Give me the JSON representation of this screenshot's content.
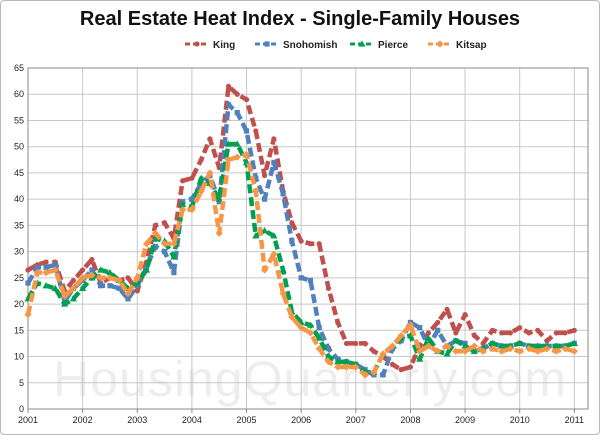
{
  "chart_data": {
    "type": "line",
    "title": "Real Estate Heat Index - Single-Family Houses",
    "xlabel": "",
    "ylabel": "",
    "ylim": [
      0,
      65
    ],
    "xlim": [
      2001,
      2011.25
    ],
    "yticks": [
      0,
      5,
      10,
      15,
      20,
      25,
      30,
      35,
      40,
      45,
      50,
      55,
      60,
      65
    ],
    "xticks": [
      2001,
      2002,
      2003,
      2004,
      2005,
      2006,
      2007,
      2008,
      2009,
      2010,
      2011
    ],
    "grid": true,
    "legend_position": "top",
    "x": [
      2001.0,
      2001.17,
      2001.33,
      2001.5,
      2001.67,
      2001.83,
      2002.0,
      2002.17,
      2002.33,
      2002.5,
      2002.67,
      2002.83,
      2003.0,
      2003.17,
      2003.33,
      2003.5,
      2003.67,
      2003.83,
      2004.0,
      2004.17,
      2004.33,
      2004.5,
      2004.67,
      2004.83,
      2005.0,
      2005.17,
      2005.33,
      2005.5,
      2005.67,
      2005.83,
      2006.0,
      2006.17,
      2006.33,
      2006.5,
      2006.67,
      2006.83,
      2007.0,
      2007.17,
      2007.33,
      2007.5,
      2007.67,
      2007.83,
      2008.0,
      2008.17,
      2008.33,
      2008.5,
      2008.67,
      2008.83,
      2009.0,
      2009.17,
      2009.33,
      2009.5,
      2009.67,
      2009.83,
      2010.0,
      2010.17,
      2010.33,
      2010.5,
      2010.67,
      2010.83,
      2011.0
    ],
    "series": [
      {
        "name": "King",
        "color": "#c0504d",
        "marker": "circle",
        "values": [
          26.5,
          27.5,
          28,
          28,
          22.5,
          24.5,
          26.5,
          28.5,
          24,
          25,
          24.5,
          25,
          22.5,
          28,
          35,
          35.5,
          32.5,
          43.5,
          44,
          47.5,
          51.5,
          46,
          61.5,
          60,
          59,
          53,
          44.5,
          51.5,
          41.5,
          35.5,
          32,
          31.5,
          31.5,
          23,
          16.5,
          12.5,
          12.5,
          12.5,
          11,
          10,
          8.5,
          7.5,
          8,
          12,
          14.5,
          16.5,
          19,
          14.5,
          18,
          14,
          12.5,
          15,
          14.5,
          14.5,
          15.5,
          14.5,
          15,
          13,
          14.5,
          14.5,
          15
        ]
      },
      {
        "name": "Snohomish",
        "color": "#4f81bd",
        "marker": "square",
        "values": [
          24,
          27,
          27,
          27.5,
          20.5,
          23,
          24.5,
          26.5,
          23.5,
          23.5,
          23,
          21,
          23.5,
          27,
          31,
          30,
          26,
          39.5,
          40,
          43,
          44.5,
          39.5,
          58,
          56.5,
          53,
          44,
          40,
          47,
          41,
          32,
          25,
          24.5,
          15.5,
          11.5,
          9.5,
          9,
          8.5,
          7.5,
          6.5,
          6.5,
          11.5,
          13,
          16.5,
          15.5,
          12,
          15,
          12,
          13,
          12.5,
          11,
          11.5,
          12.5,
          12,
          12,
          12.5,
          12,
          12,
          12,
          12,
          12,
          12.5
        ]
      },
      {
        "name": "Pierce",
        "color": "#00a050",
        "marker": "triangle",
        "values": [
          21,
          24,
          23.5,
          23,
          20,
          21,
          23,
          25,
          26.5,
          26,
          24.5,
          23,
          24,
          26.5,
          32.5,
          32,
          29,
          39,
          38.5,
          44,
          43,
          40,
          50.5,
          50.5,
          47,
          33,
          34,
          33,
          26.5,
          18.5,
          16.5,
          16,
          13.5,
          10,
          9,
          9,
          8.5,
          7,
          7,
          10.5,
          12,
          13.5,
          14,
          9.5,
          13.5,
          11,
          10.5,
          13,
          12,
          11,
          11.5,
          12.5,
          12,
          12,
          12.5,
          12,
          12,
          12,
          12,
          12,
          12.5
        ]
      },
      {
        "name": "Kitsap",
        "color": "#f79646",
        "marker": "diamond",
        "values": [
          18,
          26,
          26,
          26.5,
          21.5,
          23,
          25,
          25.5,
          25,
          25,
          24.5,
          22,
          25,
          31.5,
          33.5,
          31.5,
          31.5,
          38,
          38,
          41.5,
          45,
          33.5,
          47.5,
          48,
          48.5,
          41.5,
          26.5,
          29.5,
          22,
          17.5,
          15.5,
          14.5,
          11.5,
          9,
          8,
          8,
          8,
          6.5,
          7,
          10.5,
          12,
          14,
          16,
          11,
          12,
          11,
          12,
          11,
          11,
          12,
          11,
          11.5,
          11,
          11.5,
          11,
          11.5,
          11,
          11.5,
          11,
          11.5,
          11
        ]
      }
    ]
  },
  "watermark": "HousingQuarterly.com"
}
